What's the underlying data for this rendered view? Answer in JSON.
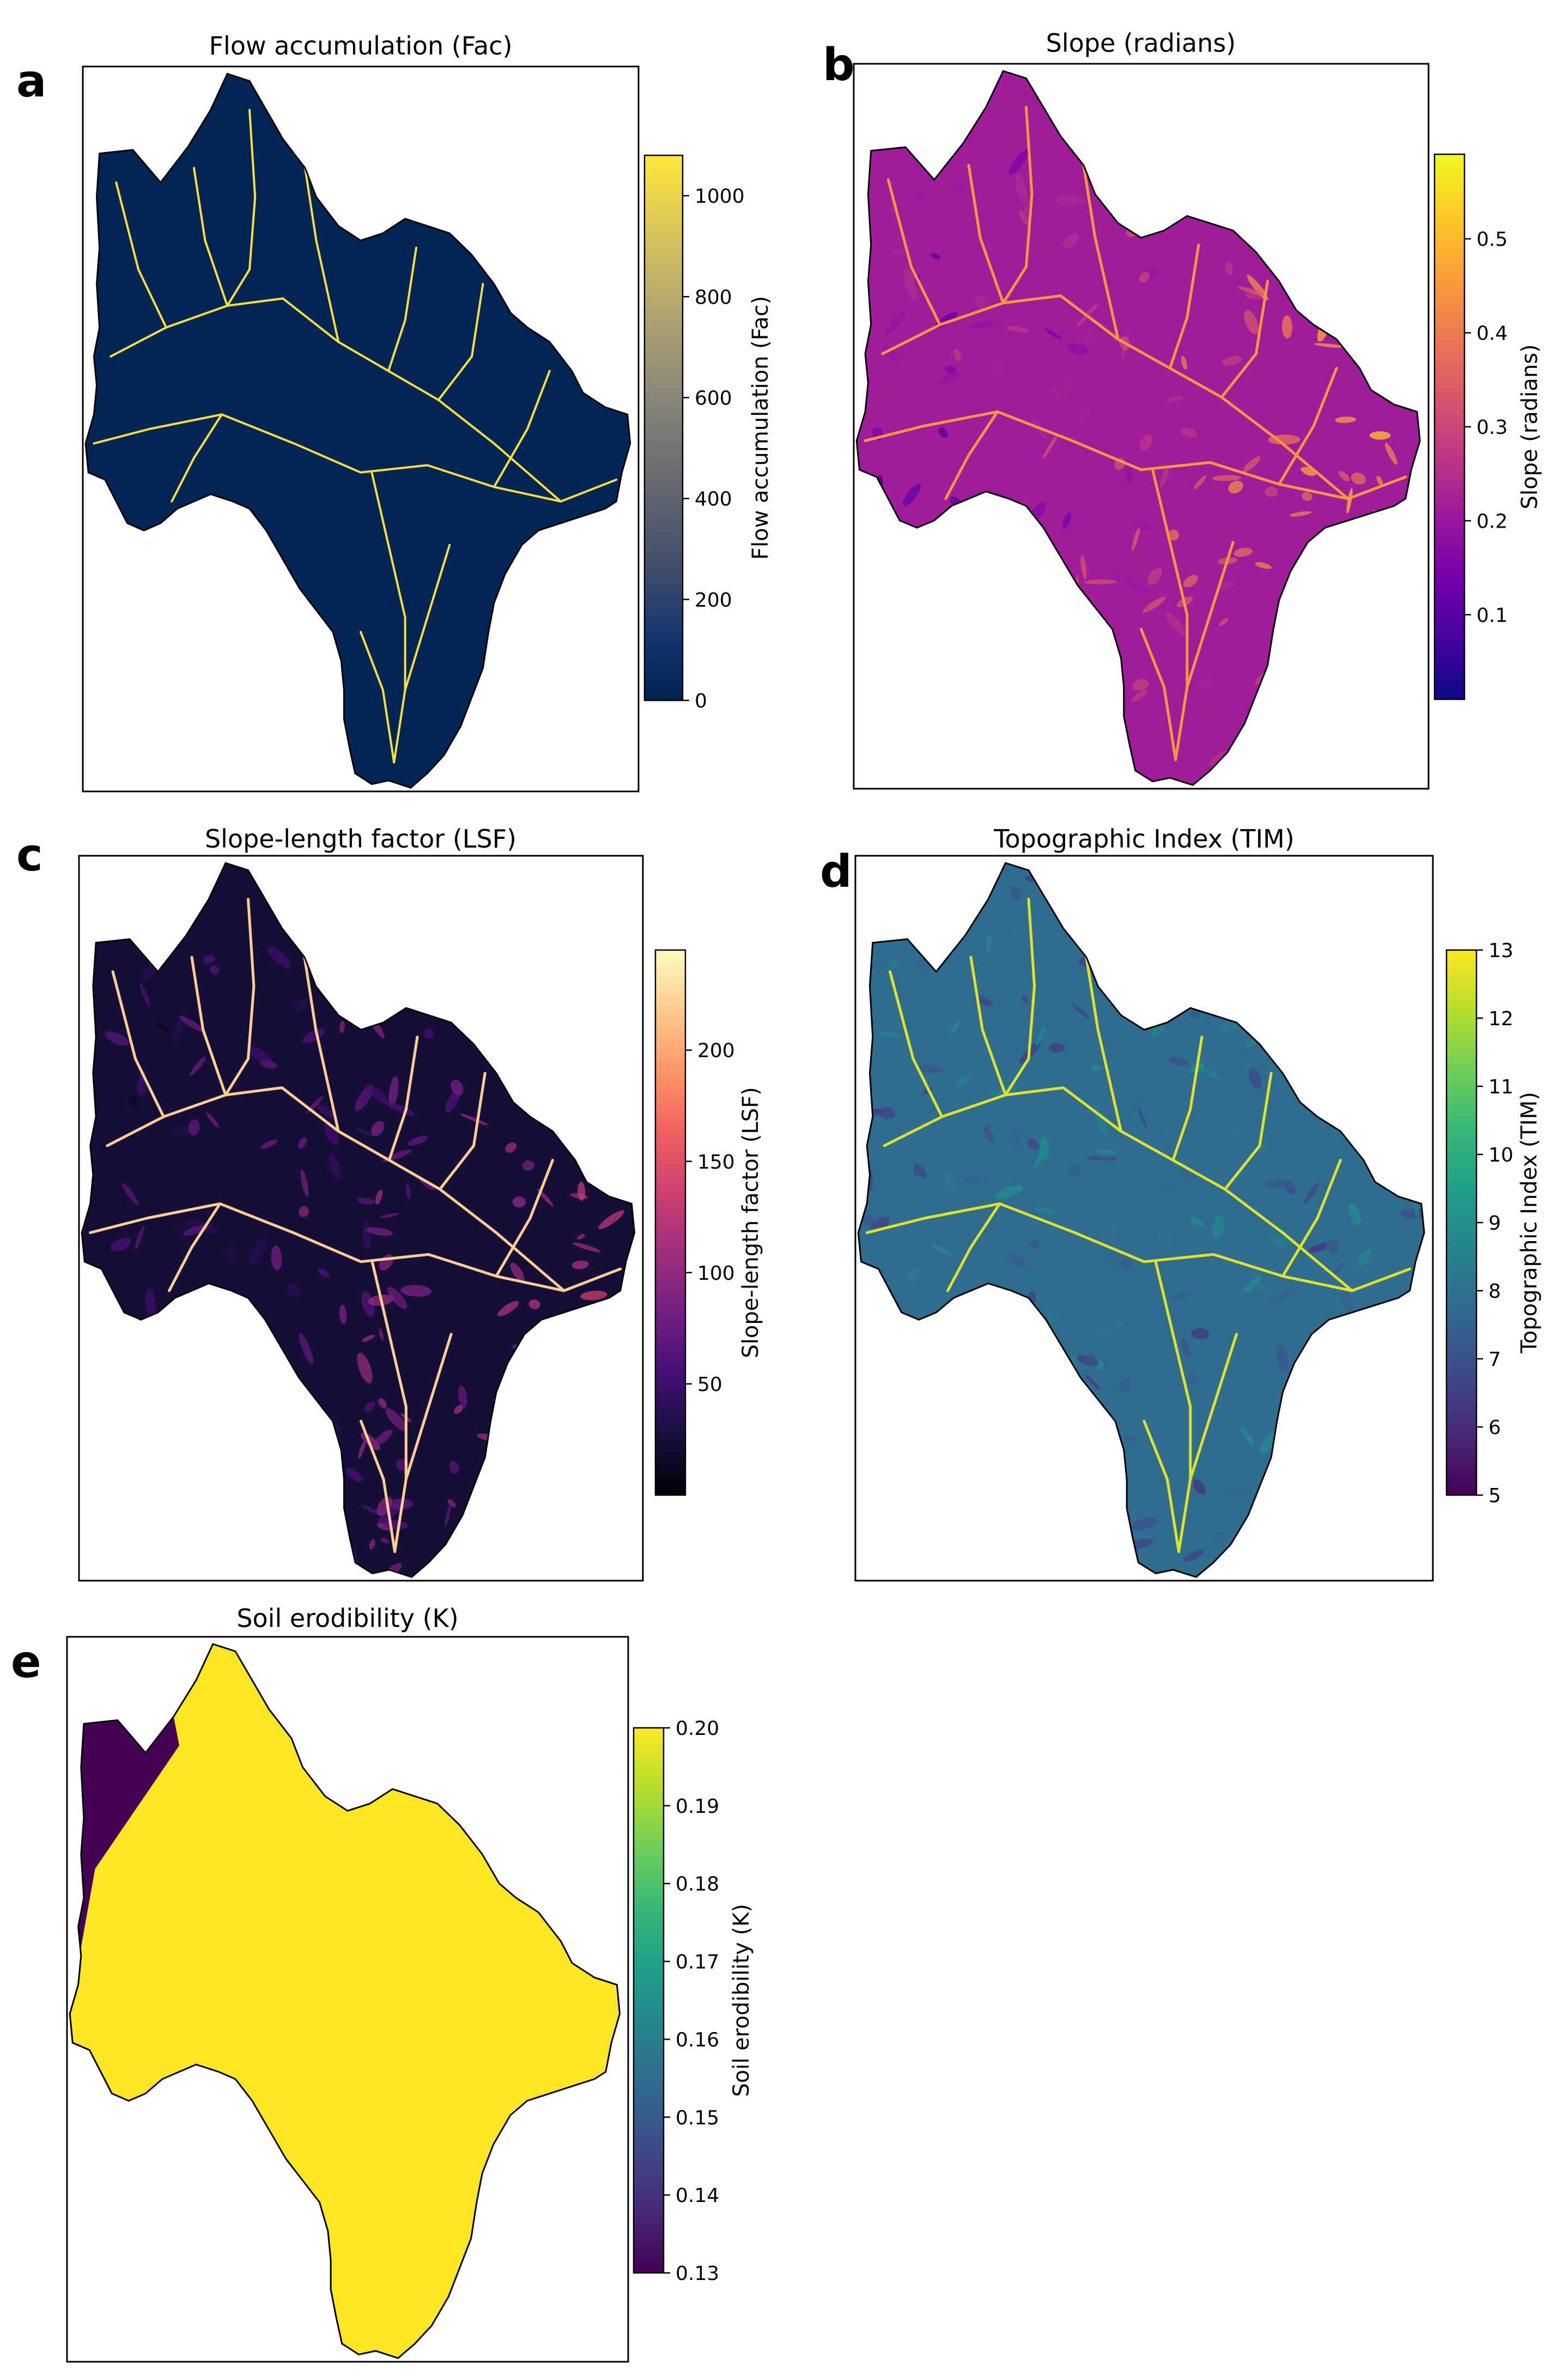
{
  "chart_data": [
    {
      "type": "heatmap",
      "panel": "a",
      "title": "Flow accumulation (Fac)",
      "colorbar_label": "Flow accumulation (Fac)",
      "colormap": "cividis",
      "colors": [
        "#00224e",
        "#123570",
        "#3b496c",
        "#575d6d",
        "#707173",
        "#8a8678",
        "#a59c74",
        "#c3b369",
        "#e1cc55",
        "#fee838"
      ],
      "range": [
        0,
        1080
      ],
      "ticks": [
        0,
        200,
        400,
        600,
        800,
        1000
      ],
      "tick_labels": [
        "0",
        "200",
        "400",
        "600",
        "800",
        "1000"
      ]
    },
    {
      "type": "heatmap",
      "panel": "b",
      "title": "Slope (radians)",
      "colorbar_label": "Slope (radians)",
      "colormap": "plasma",
      "colors": [
        "#0d0887",
        "#46039f",
        "#7201a8",
        "#9c179e",
        "#bd3786",
        "#d8576b",
        "#ed7953",
        "#fb9f3a",
        "#fdca26",
        "#f0f921"
      ],
      "range": [
        0.01,
        0.59
      ],
      "ticks": [
        0.1,
        0.2,
        0.3,
        0.4,
        0.5
      ],
      "tick_labels": [
        "0.1",
        "0.2",
        "0.3",
        "0.4",
        "0.5"
      ]
    },
    {
      "type": "heatmap",
      "panel": "c",
      "title": "Slope-length factor (LSF)",
      "colorbar_label": "Slope-length factor (LSF)",
      "colormap": "magma",
      "colors": [
        "#000004",
        "#180f3d",
        "#440f76",
        "#721f81",
        "#9e2f7f",
        "#cd4071",
        "#f1605d",
        "#fd9668",
        "#feca8d",
        "#fcfdbf"
      ],
      "range": [
        0,
        245
      ],
      "ticks": [
        50,
        100,
        150,
        200
      ],
      "tick_labels": [
        "50",
        "100",
        "150",
        "200"
      ]
    },
    {
      "type": "heatmap",
      "panel": "d",
      "title": "Topographic Index (TIM)",
      "colorbar_label": "Topographic Index (TIM)",
      "colormap": "viridis",
      "colors": [
        "#440154",
        "#482878",
        "#3e4989",
        "#31688e",
        "#26828e",
        "#1f9e89",
        "#35b779",
        "#6ece58",
        "#b5de2b",
        "#fde725"
      ],
      "range": [
        5,
        13
      ],
      "ticks": [
        5,
        6,
        7,
        8,
        9,
        10,
        11,
        12,
        13
      ],
      "tick_labels": [
        "5",
        "6",
        "7",
        "8",
        "9",
        "10",
        "11",
        "12",
        "13"
      ]
    },
    {
      "type": "heatmap",
      "panel": "e",
      "title": "Soil erodibility (K)",
      "colorbar_label": "Soil erodibility (K)",
      "colormap": "viridis",
      "colors": [
        "#440154",
        "#482878",
        "#3e4989",
        "#31688e",
        "#26828e",
        "#1f9e89",
        "#35b779",
        "#6ece58",
        "#b5de2b",
        "#fde725"
      ],
      "range": [
        0.13,
        0.2
      ],
      "ticks": [
        0.13,
        0.14,
        0.15,
        0.16,
        0.17,
        0.18,
        0.19,
        0.2
      ],
      "tick_labels": [
        "0.13",
        "0.14",
        "0.15",
        "0.16",
        "0.17",
        "0.18",
        "0.19",
        "0.20"
      ],
      "regions": [
        {
          "name": "northwest strip",
          "value": 0.13
        },
        {
          "name": "main watershed",
          "value": 0.2
        }
      ]
    }
  ]
}
